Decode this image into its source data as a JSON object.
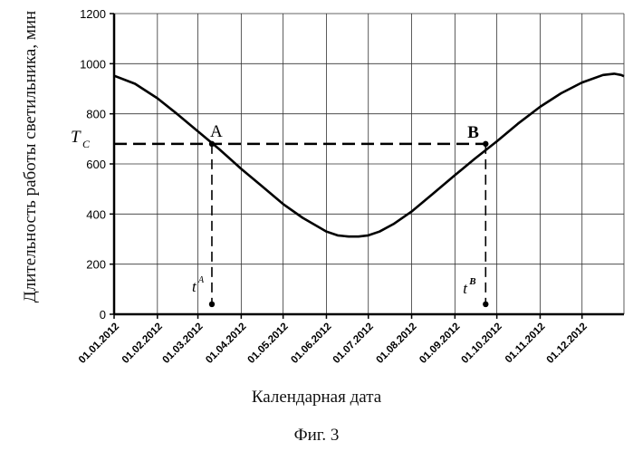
{
  "chart_data": {
    "type": "line",
    "title": "",
    "xlabel": "Календарная дата",
    "ylabel": "Длительность работы светильника, мин",
    "ylim": [
      0,
      1200
    ],
    "yticks": [
      0,
      200,
      400,
      600,
      800,
      1000,
      1200
    ],
    "xlim": [
      0,
      365
    ],
    "xtick_labels": [
      "01.01.2012",
      "01.02.2012",
      "01.03.2012",
      "01.04.2012",
      "01.05.2012",
      "01.06.2012",
      "01.07.2012",
      "01.08.2012",
      "01.09.2012",
      "01.10.2012",
      "01.11.2012",
      "01.12.2012"
    ],
    "xtick_days": [
      0,
      31,
      60,
      91,
      121,
      152,
      182,
      213,
      244,
      274,
      305,
      335
    ],
    "grid": true,
    "series": [
      {
        "x": [
          0,
          15,
          31,
          45,
          60,
          75,
          91,
          105,
          121,
          135,
          152,
          160,
          168,
          175,
          182,
          190,
          200,
          213,
          228,
          244,
          258,
          274,
          289,
          305,
          320,
          335,
          350,
          358,
          363,
          365
        ],
        "y": [
          952,
          920,
          862,
          800,
          730,
          660,
          580,
          515,
          440,
          385,
          330,
          315,
          310,
          310,
          315,
          330,
          360,
          410,
          480,
          555,
          620,
          690,
          760,
          828,
          882,
          925,
          955,
          960,
          955,
          950
        ]
      }
    ],
    "annotations": {
      "tc_label": "T",
      "tc_sub": "C",
      "tc_value": 680,
      "point_a": {
        "label": "A",
        "x": 70,
        "y": 680
      },
      "point_b": {
        "label": "B",
        "x": 266,
        "y": 680
      },
      "ta": {
        "label": "t",
        "sup": "A",
        "x": 70,
        "y": 40
      },
      "tb": {
        "label": "t",
        "sup": "B",
        "x": 266,
        "y": 40
      }
    }
  },
  "figure_caption": "Фиг. 3"
}
